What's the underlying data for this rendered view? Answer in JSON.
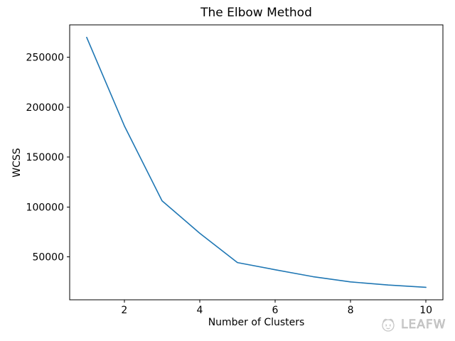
{
  "title": "The Elbow Method",
  "watermark": {
    "text": "LEAFW",
    "logo": "scribble-circle-logo"
  },
  "chart_data": {
    "type": "line",
    "title": "The Elbow Method",
    "xlabel": "Number of Clusters",
    "ylabel": "WCSS",
    "x": [
      1,
      2,
      3,
      4,
      5,
      6,
      7,
      8,
      9,
      10
    ],
    "series": [
      {
        "name": "WCSS",
        "values": [
          270000,
          181400,
          106300,
          73700,
          44400,
          37200,
          30300,
          25000,
          21900,
          19600
        ]
      }
    ],
    "xlim": [
      0.55,
      10.45
    ],
    "ylim": [
      7100,
      282500
    ],
    "xticks": [
      2,
      4,
      6,
      8,
      10
    ],
    "yticks": [
      50000,
      100000,
      150000,
      200000,
      250000
    ],
    "line_color": "#1f77b4",
    "axis_color": "#000000",
    "grid": false,
    "legend": "none"
  }
}
